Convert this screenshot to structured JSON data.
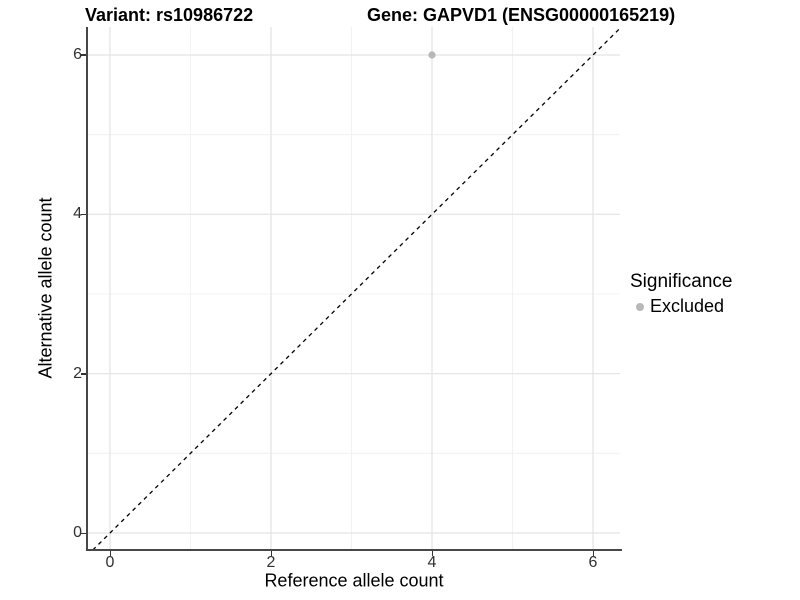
{
  "titles": {
    "variant": "Variant: rs10986722",
    "gene": "Gene: GAPVD1 (ENSG00000165219)"
  },
  "chart_data": {
    "type": "scatter",
    "title_left": "Variant: rs10986722",
    "title_right": "Gene: GAPVD1 (ENSG00000165219)",
    "xlabel": "Reference allele count",
    "ylabel": "Alternative allele count",
    "xlim": [
      -0.3,
      6.35
    ],
    "ylim": [
      -0.25,
      6.35
    ],
    "x_ticks": [
      0,
      2,
      4,
      6
    ],
    "y_ticks": [
      0,
      2,
      4,
      6
    ],
    "minor_ticks": [
      1,
      3,
      5
    ],
    "grid": true,
    "series": [
      {
        "name": "Excluded",
        "points": [
          {
            "x": 4,
            "y": 6
          }
        ]
      }
    ],
    "reference_line": {
      "slope": 1,
      "intercept": 0,
      "style": "dashed",
      "color": "#000000"
    },
    "legend": {
      "title": "Significance",
      "position": "right",
      "items": [
        {
          "label": "Excluded",
          "color": "#b8b8b8"
        }
      ]
    }
  },
  "colors": {
    "background": "#ffffff",
    "point": "#b8b8b8",
    "grid_major": "#e3e3e3",
    "grid_minor": "#efefef",
    "axis_line": "#474747",
    "tick_mark": "#333333",
    "tick_text": "#303030",
    "dashed_line": "#000000"
  }
}
